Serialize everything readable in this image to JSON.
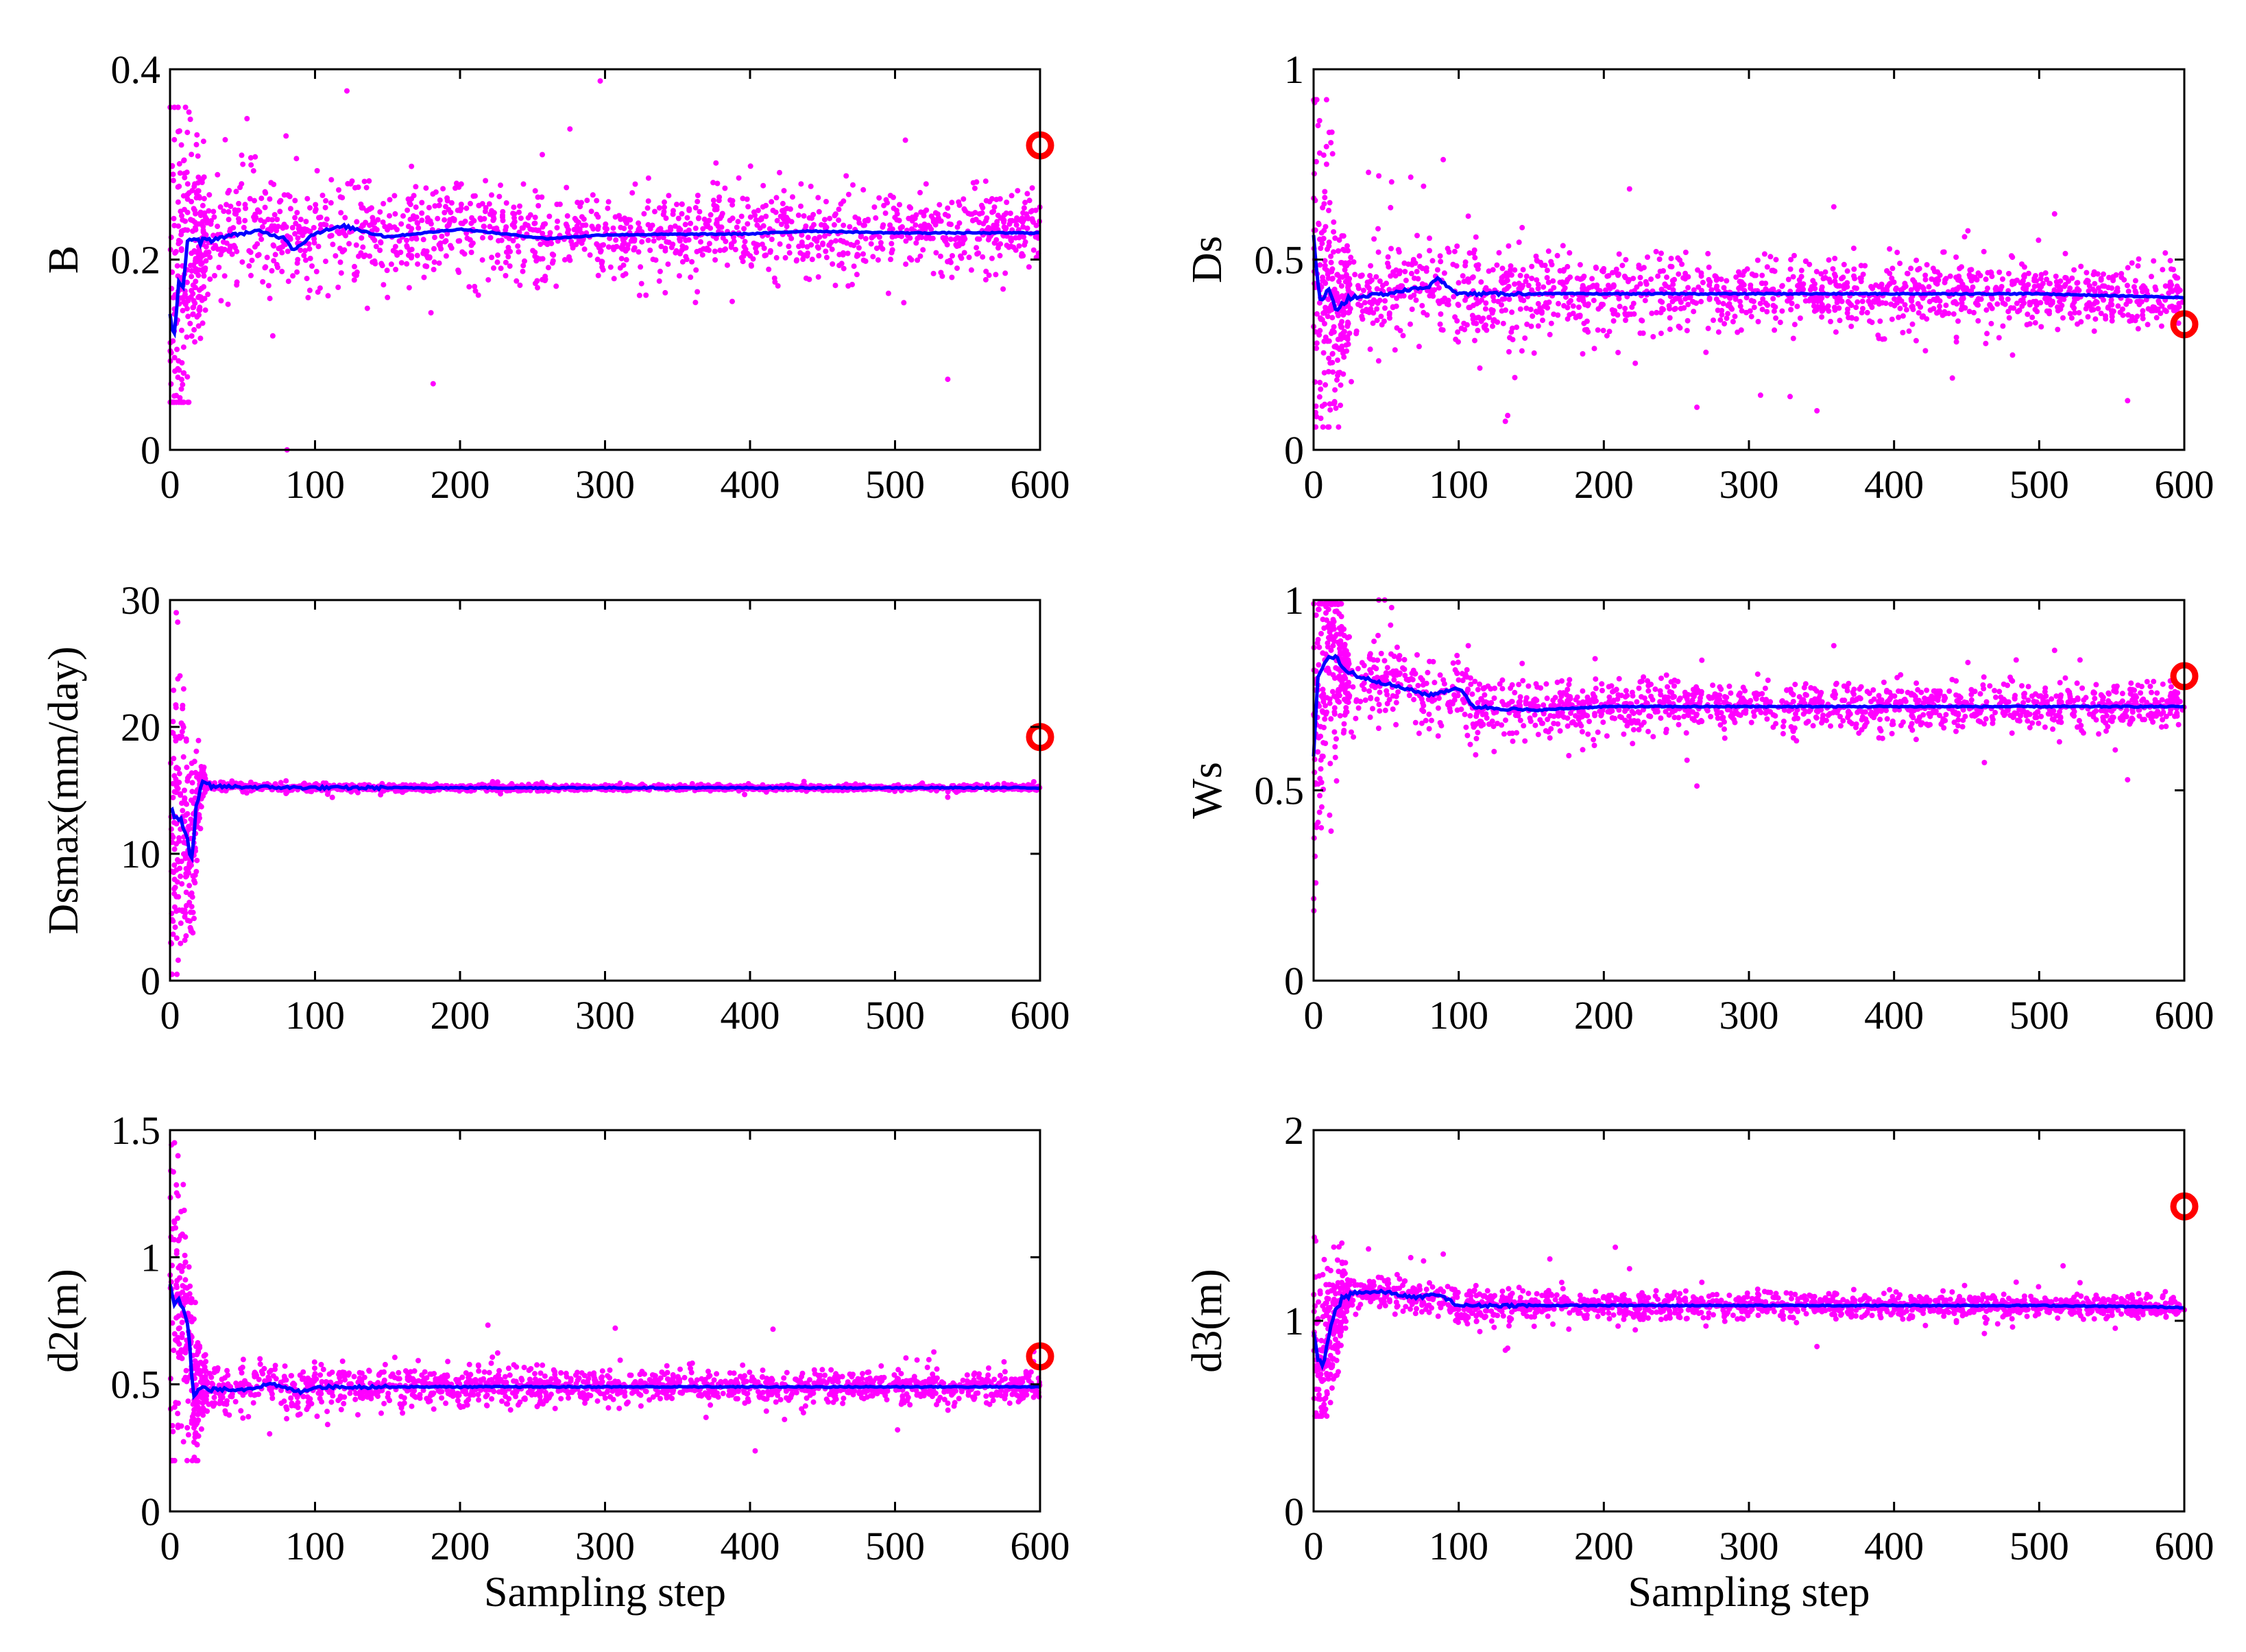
{
  "colors": {
    "samples": "#ff00ff",
    "running_mean": "#0000ff",
    "reference": "#ff0000",
    "axes": "#000000"
  },
  "chart_data": [
    {
      "type": "scatter",
      "panel": "top-left",
      "ylabel": "B",
      "xlabel": "",
      "xlim": [
        0,
        600
      ],
      "ylim": [
        0,
        0.4
      ],
      "xticks": [
        "0",
        "100",
        "200",
        "300",
        "400",
        "500",
        "600"
      ],
      "yticks": [
        "0",
        "0.2",
        "0.4"
      ],
      "ytick_values": [
        0,
        0.2,
        0.4
      ],
      "series": [
        {
          "name": "samples",
          "kind": "scatter",
          "center": 0.228,
          "spread": 0.025,
          "early_low": 0.05,
          "early_high": 0.36
        },
        {
          "name": "running mean",
          "kind": "line",
          "x": [
            0,
            3,
            6,
            9,
            12,
            20,
            40,
            60,
            80,
            85,
            100,
            120,
            150,
            200,
            260,
            300,
            400,
            440,
            500,
            600
          ],
          "values": [
            0.14,
            0.12,
            0.18,
            0.17,
            0.22,
            0.218,
            0.225,
            0.23,
            0.222,
            0.21,
            0.228,
            0.235,
            0.224,
            0.232,
            0.222,
            0.226,
            0.227,
            0.23,
            0.228,
            0.228
          ]
        },
        {
          "name": "reference",
          "kind": "marker",
          "x": 600,
          "y": 0.32
        }
      ]
    },
    {
      "type": "scatter",
      "panel": "top-right",
      "ylabel": "Ds",
      "xlabel": "",
      "xlim": [
        0,
        600
      ],
      "ylim": [
        0,
        1
      ],
      "xticks": [
        "0",
        "100",
        "200",
        "300",
        "400",
        "500",
        "600"
      ],
      "yticks": [
        "0",
        "0.5",
        "1"
      ],
      "ytick_values": [
        0,
        0.5,
        1
      ],
      "series": [
        {
          "name": "samples",
          "kind": "scatter",
          "center": 0.41,
          "spread": 0.05,
          "early_low": 0.06,
          "early_high": 0.92
        },
        {
          "name": "running mean",
          "kind": "line",
          "x": [
            0,
            2,
            5,
            10,
            15,
            25,
            50,
            80,
            85,
            100,
            150,
            200,
            300,
            400,
            500,
            600
          ],
          "values": [
            0.57,
            0.46,
            0.38,
            0.42,
            0.37,
            0.4,
            0.41,
            0.43,
            0.45,
            0.41,
            0.41,
            0.41,
            0.41,
            0.41,
            0.41,
            0.4
          ]
        },
        {
          "name": "reference",
          "kind": "marker",
          "x": 600,
          "y": 0.33
        }
      ]
    },
    {
      "type": "scatter",
      "panel": "middle-left",
      "ylabel": "Dsmax(mm/day)",
      "xlabel": "",
      "xlim": [
        0,
        600
      ],
      "ylim": [
        0,
        30
      ],
      "xticks": [
        "0",
        "100",
        "200",
        "300",
        "400",
        "500",
        "600"
      ],
      "yticks": [
        "0",
        "10",
        "20",
        "30"
      ],
      "ytick_values": [
        0,
        10,
        20,
        30
      ],
      "series": [
        {
          "name": "samples",
          "kind": "scatter",
          "center": 15.2,
          "spread": 0.12,
          "early_low": 0.5,
          "early_high": 29
        },
        {
          "name": "running mean",
          "kind": "line",
          "x": [
            0,
            4,
            8,
            12,
            15,
            18,
            22,
            30,
            100,
            200,
            300,
            400,
            500,
            600
          ],
          "values": [
            13.5,
            12.8,
            12.5,
            11,
            9.5,
            13.5,
            15.5,
            15.3,
            15.2,
            15.2,
            15.2,
            15.2,
            15.2,
            15.2
          ]
        },
        {
          "name": "reference",
          "kind": "marker",
          "x": 600,
          "y": 19.2
        }
      ]
    },
    {
      "type": "scatter",
      "panel": "middle-right",
      "ylabel": "Ws",
      "xlabel": "",
      "xlim": [
        0,
        600
      ],
      "ylim": [
        0,
        1
      ],
      "xticks": [
        "0",
        "100",
        "200",
        "300",
        "400",
        "500",
        "600"
      ],
      "yticks": [
        "0",
        "0.5",
        "1"
      ],
      "ytick_values": [
        0,
        0.5,
        1
      ],
      "series": [
        {
          "name": "samples",
          "kind": "scatter",
          "center": 0.72,
          "spread": 0.035,
          "early_low": 0.15,
          "early_high": 0.99
        },
        {
          "name": "running mean",
          "kind": "line",
          "x": [
            0,
            3,
            6,
            10,
            15,
            20,
            30,
            50,
            80,
            100,
            110,
            150,
            200,
            300,
            400,
            500,
            600
          ],
          "values": [
            0.58,
            0.8,
            0.82,
            0.84,
            0.86,
            0.82,
            0.8,
            0.78,
            0.75,
            0.77,
            0.72,
            0.71,
            0.72,
            0.72,
            0.72,
            0.72,
            0.72
          ]
        },
        {
          "name": "reference",
          "kind": "marker",
          "x": 600,
          "y": 0.8
        }
      ]
    },
    {
      "type": "scatter",
      "panel": "bottom-left",
      "ylabel": "d2(m)",
      "xlabel": "Sampling step",
      "xlim": [
        0,
        600
      ],
      "ylim": [
        0,
        1.5
      ],
      "xticks": [
        "0",
        "100",
        "200",
        "300",
        "400",
        "500",
        "600"
      ],
      "yticks": [
        "0",
        "0.5",
        "1",
        "1.5"
      ],
      "ytick_values": [
        0,
        0.5,
        1,
        1.5
      ],
      "series": [
        {
          "name": "samples",
          "kind": "scatter",
          "center": 0.49,
          "spread": 0.035,
          "early_low": 0.2,
          "early_high": 1.45
        },
        {
          "name": "running mean",
          "kind": "line",
          "x": [
            0,
            3,
            6,
            10,
            13,
            16,
            20,
            50,
            70,
            90,
            100,
            200,
            300,
            400,
            500,
            600
          ],
          "values": [
            0.9,
            0.82,
            0.85,
            0.78,
            0.7,
            0.45,
            0.48,
            0.48,
            0.5,
            0.47,
            0.49,
            0.49,
            0.49,
            0.49,
            0.49,
            0.49
          ]
        },
        {
          "name": "reference",
          "kind": "marker",
          "x": 600,
          "y": 0.61
        }
      ]
    },
    {
      "type": "scatter",
      "panel": "bottom-right",
      "ylabel": "d3(m)",
      "xlabel": "Sampling step",
      "xlim": [
        0,
        600
      ],
      "ylim": [
        0,
        2
      ],
      "xticks": [
        "0",
        "100",
        "200",
        "300",
        "400",
        "500",
        "600"
      ],
      "yticks": [
        "0",
        "1",
        "2"
      ],
      "ytick_values": [
        0,
        1,
        2
      ],
      "series": [
        {
          "name": "samples",
          "kind": "scatter",
          "center": 1.08,
          "spread": 0.035,
          "early_low": 0.5,
          "early_high": 1.45
        },
        {
          "name": "running mean",
          "kind": "line",
          "x": [
            0,
            3,
            6,
            10,
            15,
            20,
            30,
            50,
            70,
            85,
            100,
            200,
            300,
            400,
            500,
            600
          ],
          "values": [
            0.95,
            0.8,
            0.75,
            0.9,
            1.05,
            1.12,
            1.15,
            1.15,
            1.12,
            1.14,
            1.08,
            1.08,
            1.08,
            1.08,
            1.08,
            1.07
          ]
        },
        {
          "name": "reference",
          "kind": "marker",
          "x": 600,
          "y": 1.6
        }
      ]
    }
  ]
}
